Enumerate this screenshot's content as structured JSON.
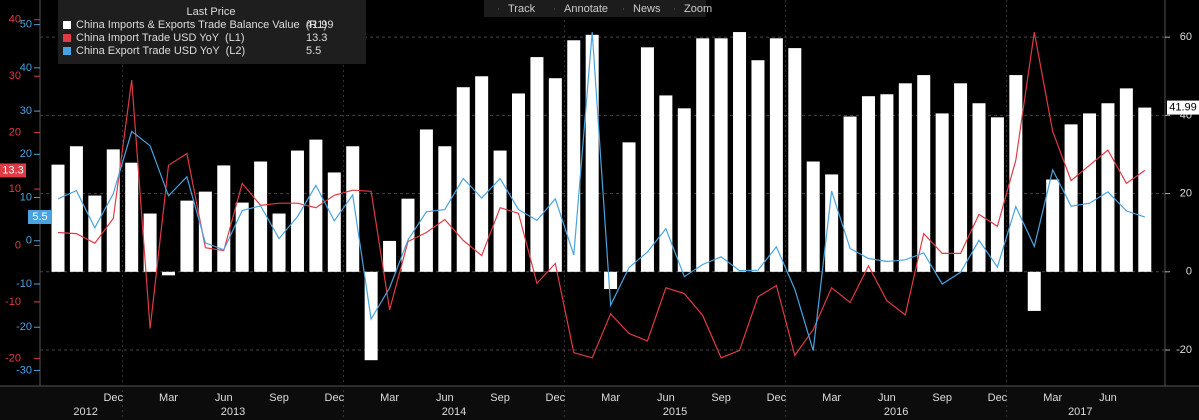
{
  "chart_data": {
    "type": "bar-line",
    "legend_title": "Last Price",
    "toolbar": [
      "Track",
      "Annotate",
      "News",
      "Zoom"
    ],
    "categories": [
      null,
      null,
      null,
      "Dec",
      null,
      null,
      "Mar",
      null,
      null,
      "Jun",
      null,
      null,
      "Sep",
      null,
      null,
      "Dec",
      null,
      null,
      "Mar",
      null,
      null,
      "Jun",
      null,
      null,
      "Sep",
      null,
      null,
      "Dec",
      null,
      null,
      "Mar",
      null,
      null,
      "Jun",
      null,
      null,
      "Sep",
      null,
      null,
      "Dec",
      null,
      null,
      "Mar",
      null,
      null,
      "Jun",
      null,
      null,
      "Sep",
      null,
      null,
      "Dec",
      null,
      null,
      "Mar",
      null,
      null,
      "Jun",
      null,
      null
    ],
    "years": [
      "2012",
      "2013",
      "2014",
      "2015",
      "2016",
      "2017"
    ],
    "series": [
      {
        "name": "China Imports & Exports Trade Balance Value  (R1)",
        "type": "bar",
        "axis": "y3",
        "color": "#ffffff",
        "values": [
          27.4,
          32.1,
          19.5,
          31.3,
          27.9,
          14.9,
          -0.9,
          18.2,
          20.5,
          27.2,
          17.7,
          28.2,
          14.9,
          31.0,
          33.8,
          25.4,
          32.1,
          -22.6,
          7.9,
          18.7,
          36.4,
          32.1,
          47.2,
          50.0,
          31.0,
          45.6,
          54.9,
          49.5,
          59.2,
          60.6,
          -4.4,
          33.1,
          57.4,
          45.1,
          41.8,
          59.7,
          59.7,
          61.3,
          54.1,
          59.7,
          57.2,
          28.2,
          24.9,
          39.7,
          44.9,
          45.4,
          48.2,
          50.3,
          40.5,
          48.2,
          43.1,
          39.5,
          50.3,
          -10.0,
          23.6,
          37.7,
          40.5,
          43.1,
          46.9,
          41.99
        ]
      },
      {
        "name": "China Import Trade USD YoY  (L1)",
        "type": "line",
        "axis": "y",
        "color": "#e03a44",
        "values": [
          2.3,
          2.1,
          0.4,
          4.8,
          29.3,
          -14.7,
          14.2,
          16.3,
          -0.4,
          -0.9,
          11.0,
          7.1,
          7.5,
          7.5,
          6.7,
          8.9,
          9.8,
          9.6,
          -11.4,
          0.7,
          2.3,
          4.6,
          0.9,
          -1.8,
          6.7,
          5.7,
          -6.7,
          -3.2,
          -19.0,
          -19.9,
          -12.1,
          -15.6,
          -16.9,
          -7.5,
          -8.5,
          -12.4,
          -19.9,
          -18.6,
          -9.1,
          -7.1,
          -19.5,
          -14.9,
          -7.5,
          -10.1,
          -3.6,
          -9.8,
          -12.3,
          2.1,
          -1.4,
          -1.4,
          5.5,
          3.4,
          15.1,
          37.8,
          20.2,
          11.5,
          14.2,
          16.9,
          11.0,
          13.3
        ]
      },
      {
        "name": "China Export Trade USD YoY  (L2)",
        "type": "line",
        "axis": "y2",
        "color": "#4aa3df",
        "values": [
          9.7,
          11.6,
          3.0,
          10.9,
          25.3,
          22.0,
          10.4,
          14.8,
          -0.5,
          -2.1,
          7.0,
          8.1,
          0.5,
          5.6,
          12.8,
          4.6,
          10.6,
          -18.1,
          -10.9,
          0.2,
          6.7,
          7.2,
          14.4,
          9.9,
          14.4,
          7.2,
          4.7,
          9.7,
          -3.3,
          48.3,
          -14.9,
          -6.2,
          -2.6,
          2.8,
          -8.3,
          -5.5,
          -3.7,
          -6.9,
          -6.8,
          -1.4,
          -11.2,
          -25.4,
          11.5,
          -1.8,
          -4.1,
          -4.8,
          -4.4,
          -2.8,
          -10.0,
          -7.3,
          0.1,
          -6.1,
          7.9,
          -1.3,
          16.4,
          8.0,
          8.7,
          11.3,
          6.9,
          5.5
        ]
      }
    ],
    "ylim": [
      -24.9,
      43.5
    ],
    "yticks": [
      40,
      30,
      20,
      10,
      0,
      -10,
      -20
    ],
    "y2lim": [
      -33.6,
      55.7
    ],
    "y2ticks": [
      50,
      40,
      30,
      20,
      10,
      0,
      -10,
      -20,
      -30
    ],
    "y3lim": [
      -29.2,
      69.5
    ],
    "y3ticks": [
      60,
      40,
      20,
      0,
      -20
    ],
    "grid": true
  }
}
